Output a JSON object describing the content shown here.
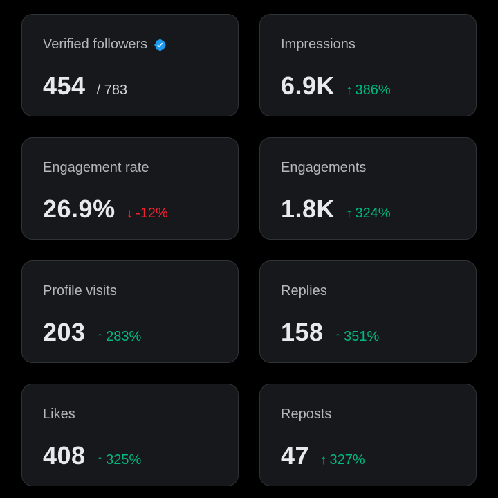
{
  "cards": [
    {
      "label": "Verified followers",
      "value": "454",
      "sub": "/ 783",
      "verified": true
    },
    {
      "label": "Impressions",
      "value": "6.9K",
      "change": {
        "dir": "up",
        "arrow": "↑",
        "text": "386%"
      }
    },
    {
      "label": "Engagement rate",
      "value": "26.9%",
      "change": {
        "dir": "down",
        "arrow": "↓",
        "text": "-12%"
      }
    },
    {
      "label": "Engagements",
      "value": "1.8K",
      "change": {
        "dir": "up",
        "arrow": "↑",
        "text": "324%"
      }
    },
    {
      "label": "Profile visits",
      "value": "203",
      "change": {
        "dir": "up",
        "arrow": "↑",
        "text": "283%"
      }
    },
    {
      "label": "Replies",
      "value": "158",
      "change": {
        "dir": "up",
        "arrow": "↑",
        "text": "351%"
      }
    },
    {
      "label": "Likes",
      "value": "408",
      "change": {
        "dir": "up",
        "arrow": "↑",
        "text": "325%"
      }
    },
    {
      "label": "Reposts",
      "value": "47",
      "change": {
        "dir": "up",
        "arrow": "↑",
        "text": "327%"
      }
    }
  ],
  "colors": {
    "background": "#000000",
    "card": "#16181c",
    "positive": "#00ba7c",
    "negative": "#f4212e",
    "verified": "#1d9bf0"
  },
  "icons": {
    "verified": "verified-badge-icon",
    "up": "arrow-up-icon",
    "down": "arrow-down-icon"
  }
}
